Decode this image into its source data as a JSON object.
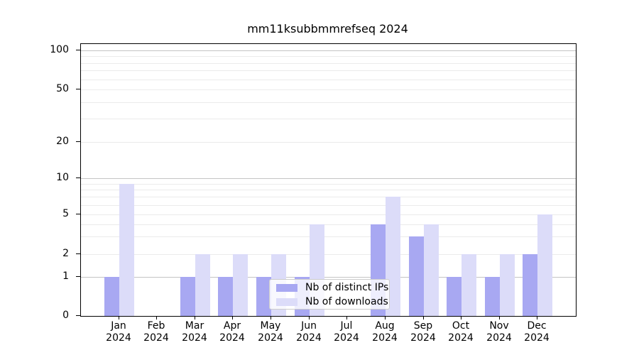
{
  "chart_data": {
    "type": "bar",
    "title": "mm11ksubbmmrefseq 2024",
    "year": "2024",
    "categories": [
      "Jan",
      "Feb",
      "Mar",
      "Apr",
      "May",
      "Jun",
      "Jul",
      "Aug",
      "Sep",
      "Oct",
      "Nov",
      "Dec"
    ],
    "series": [
      {
        "name": "Nb of distinct IPs",
        "color": "#a8a8f2",
        "values": [
          1,
          0,
          1,
          1,
          1,
          1,
          0,
          4,
          3,
          1,
          1,
          2
        ]
      },
      {
        "name": "Nb of downloads",
        "color": "#dcdcf9",
        "values": [
          9,
          0,
          2,
          2,
          2,
          4,
          0,
          7,
          4,
          2,
          2,
          5
        ]
      }
    ],
    "y_axis": {
      "scale": "symlog-like",
      "ticks": [
        0,
        1,
        2,
        5,
        10,
        20,
        50,
        100
      ],
      "ylim": [
        0,
        113
      ],
      "major_gridlines": [
        1,
        10,
        100
      ],
      "minor_gridlines": [
        2,
        3,
        4,
        5,
        6,
        7,
        8,
        9,
        20,
        30,
        40,
        50,
        60,
        70,
        80,
        90
      ]
    },
    "xlabel": "",
    "ylabel": "",
    "grid": true,
    "legend_position": "lower center"
  }
}
